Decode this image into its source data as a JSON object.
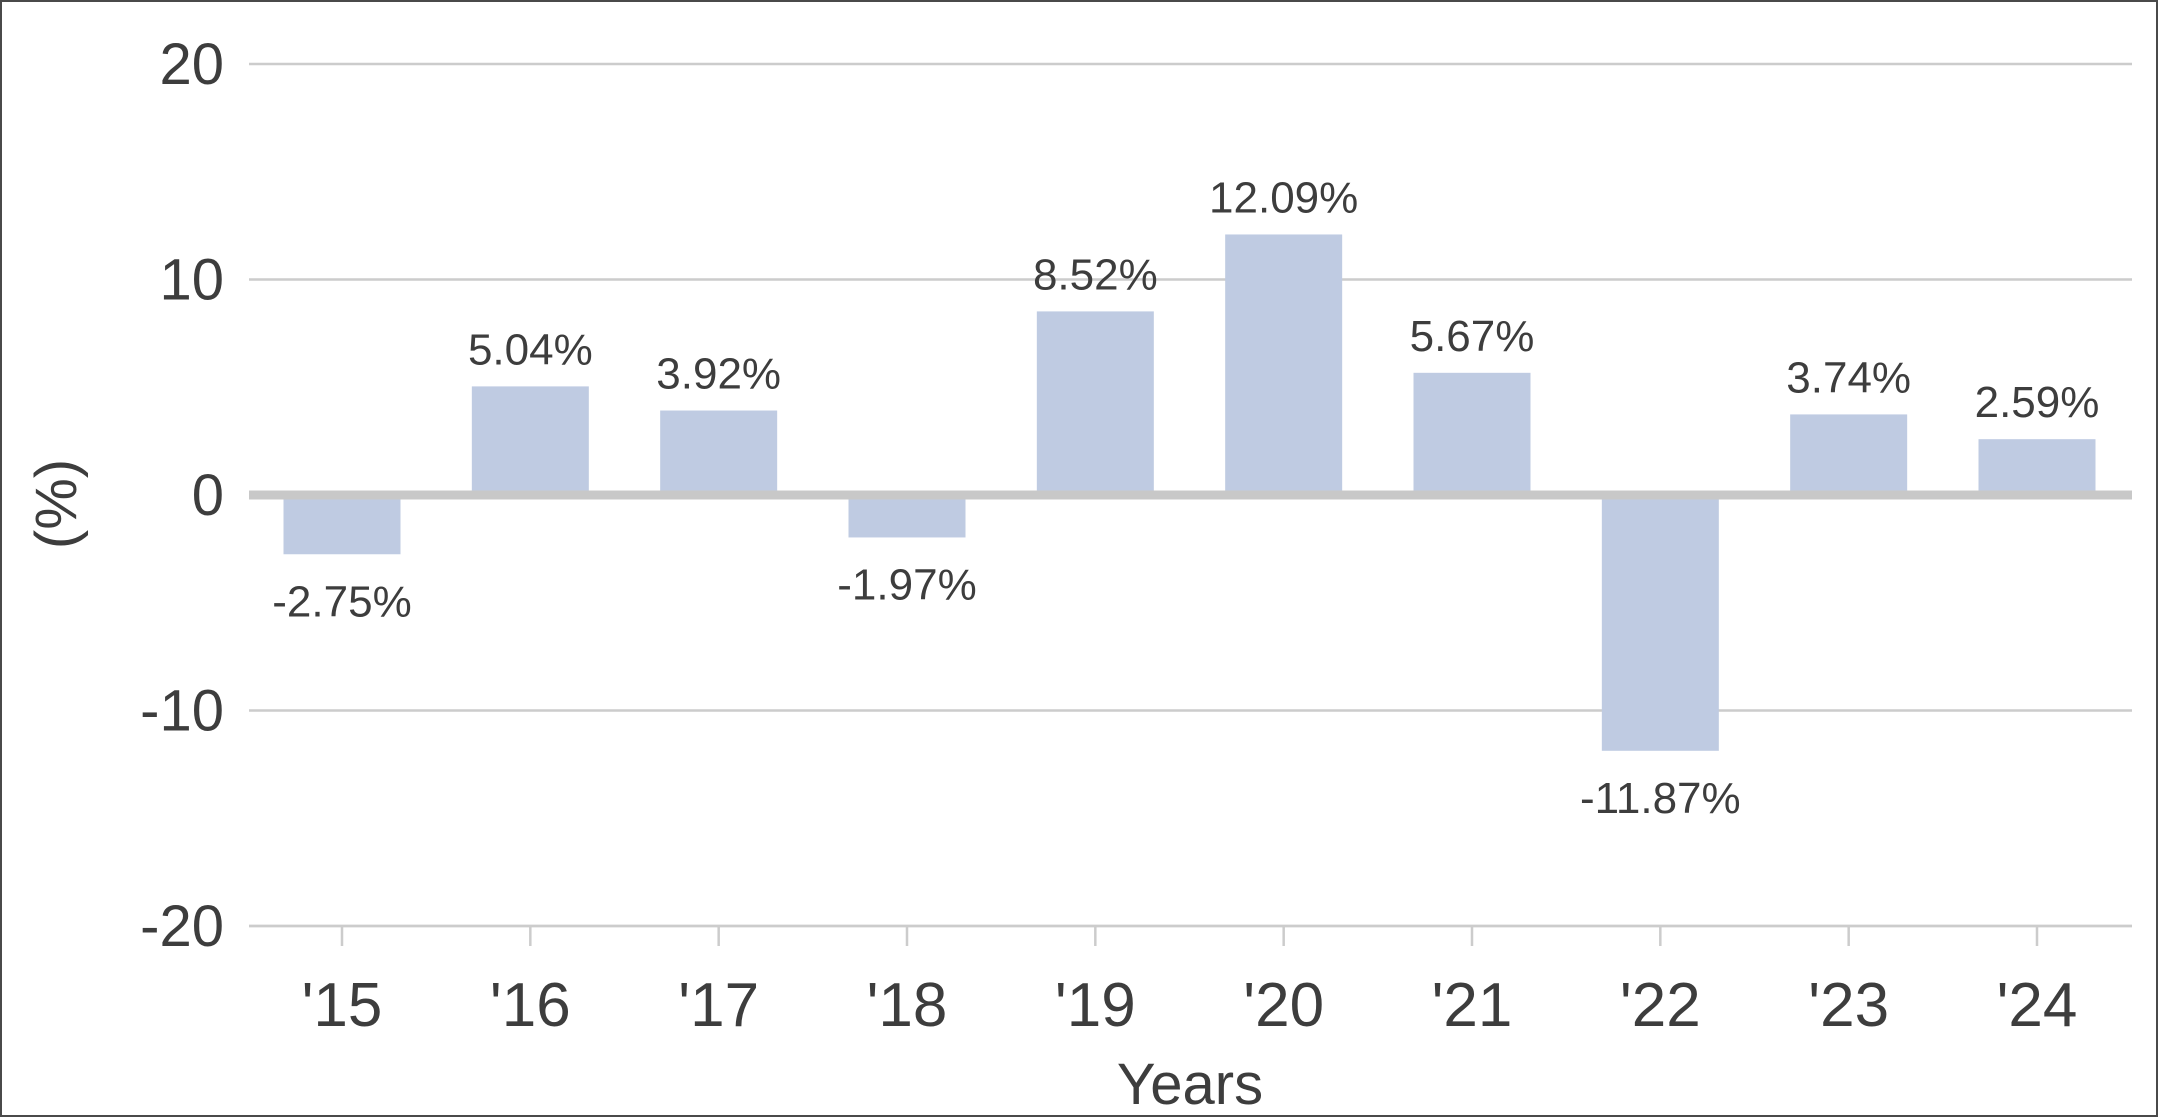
{
  "chart_data": {
    "type": "bar",
    "categories": [
      "'15",
      "'16",
      "'17",
      "'18",
      "'19",
      "'20",
      "'21",
      "'22",
      "'23",
      "'24"
    ],
    "series": [
      {
        "values": [
          -2.75,
          5.04,
          3.92,
          -1.97,
          8.52,
          12.09,
          5.67,
          -11.87,
          3.74,
          2.59
        ]
      }
    ],
    "data_labels": [
      "-2.75%",
      "5.04%",
      "3.92%",
      "-1.97%",
      "8.52%",
      "12.09%",
      "5.67%",
      "-11.87%",
      "3.74%",
      "2.59%"
    ],
    "title": "",
    "xlabel": "Years",
    "ylabel": "(%)",
    "ylim": [
      -20,
      20
    ],
    "yticks": [
      20,
      10,
      0,
      -10,
      -20
    ],
    "ytick_labels": [
      "20",
      "10",
      "0",
      "-10",
      "-20"
    ],
    "grid": true,
    "legend": "none",
    "colors": {
      "bar": "#bfcbe2",
      "grid": "#cccccc",
      "zero_line": "#c8c8c8",
      "text": "#3d3d3d",
      "frame": "#4a4a4a"
    }
  }
}
